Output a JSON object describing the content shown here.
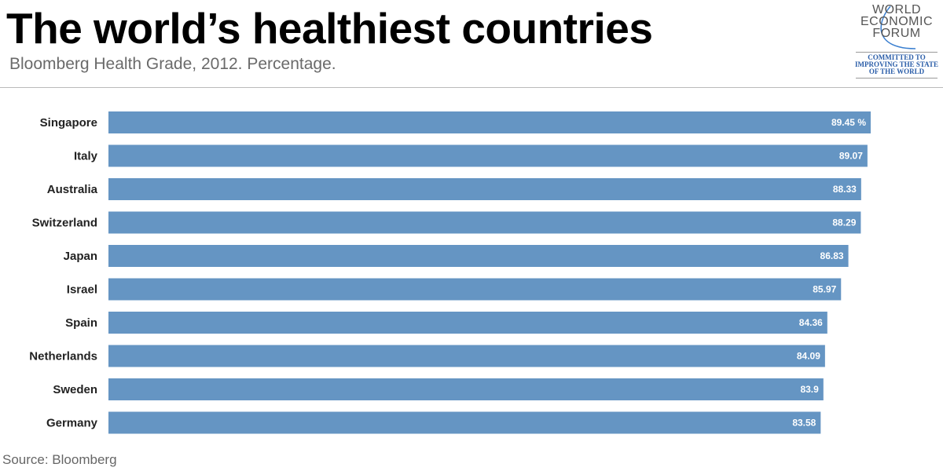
{
  "title": "The world’s healthiest countries",
  "subtitle": "Bloomberg Health Grade, 2012. Percentage.",
  "source": "Source: Bloomberg",
  "logo": {
    "line1": "WORLD",
    "line2": "ECONOMIC",
    "line3": "FORUM",
    "tagline1": "COMMITTED TO",
    "tagline2": "IMPROVING THE STATE",
    "tagline3": "OF THE WORLD"
  },
  "chart_data": {
    "type": "bar",
    "orientation": "horizontal",
    "categories": [
      "Singapore",
      "Italy",
      "Australia",
      "Switzerland",
      "Japan",
      "Israel",
      "Spain",
      "Netherlands",
      "Sweden",
      "Germany"
    ],
    "values": [
      89.45,
      89.07,
      88.33,
      88.29,
      86.83,
      85.97,
      84.36,
      84.09,
      83.9,
      83.58
    ],
    "data_labels": [
      "89.45 %",
      "89.07",
      "88.33",
      "88.29",
      "86.83",
      "85.97",
      "84.36",
      "84.09",
      "83.9",
      "83.58"
    ],
    "xlim": [
      0,
      89.45
    ],
    "grid": false,
    "bar_color": "#6595c3"
  }
}
